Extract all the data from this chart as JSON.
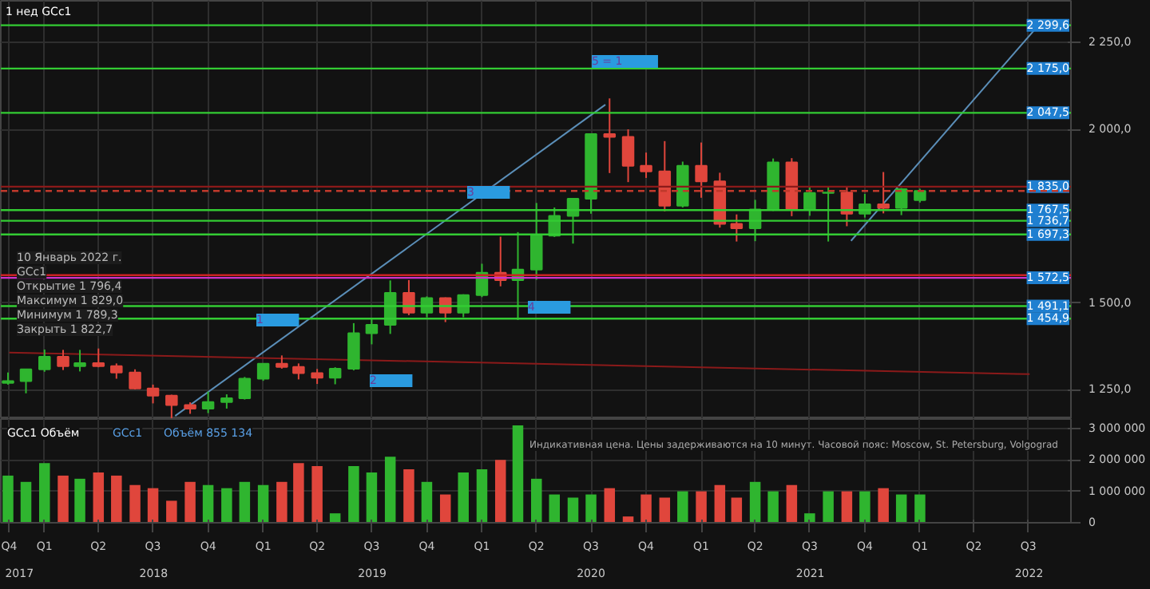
{
  "chart_data": [
    {
      "type": "candlestick",
      "annotations": [
        "1 нед GCc1",
        "10 Январь 2022 г.",
        "GCc1",
        "Открытие 1 796,4",
        "Максимум 1 829,0",
        "Минимум 1 789,3",
        "Закрыть 1 822,7",
        "1",
        "2",
        "3",
        "4",
        "5 = 1"
      ],
      "x": [
        "2017-11",
        "2017-12",
        "2018-01",
        "2018-02",
        "2018-03",
        "2018-04",
        "2018-05",
        "2018-06",
        "2018-07",
        "2018-08",
        "2018-09",
        "2018-10",
        "2018-11",
        "2018-12",
        "2019-01",
        "2019-02",
        "2019-03",
        "2019-04",
        "2019-05",
        "2019-06",
        "2019-07",
        "2019-08",
        "2019-09",
        "2019-10",
        "2019-11",
        "2019-12",
        "2020-01",
        "2020-02",
        "2020-03",
        "2020-04",
        "2020-05",
        "2020-06",
        "2020-07",
        "2020-08",
        "2020-09",
        "2020-10",
        "2020-11",
        "2020-12",
        "2021-01",
        "2021-02",
        "2021-03",
        "2021-04",
        "2021-05",
        "2021-06",
        "2021-07",
        "2021-08",
        "2021-09",
        "2021-10",
        "2021-11",
        "2021-12",
        "2022-01"
      ],
      "ohlc": [
        [
          1270,
          1300,
          1265,
          1275
        ],
        [
          1275,
          1310,
          1240,
          1309
        ],
        [
          1309,
          1366,
          1302,
          1345
        ],
        [
          1345,
          1365,
          1307,
          1318
        ],
        [
          1318,
          1365,
          1303,
          1327
        ],
        [
          1327,
          1369,
          1315,
          1318
        ],
        [
          1318,
          1326,
          1282,
          1300
        ],
        [
          1300,
          1309,
          1251,
          1254
        ],
        [
          1254,
          1265,
          1211,
          1233
        ],
        [
          1233,
          1236,
          1167,
          1206
        ],
        [
          1206,
          1214,
          1181,
          1196
        ],
        [
          1196,
          1245,
          1183,
          1215
        ],
        [
          1215,
          1237,
          1196,
          1226
        ],
        [
          1226,
          1287,
          1222,
          1282
        ],
        [
          1282,
          1326,
          1276,
          1325
        ],
        [
          1325,
          1349,
          1311,
          1316
        ],
        [
          1316,
          1326,
          1280,
          1298
        ],
        [
          1298,
          1310,
          1267,
          1285
        ],
        [
          1285,
          1315,
          1266,
          1311
        ],
        [
          1311,
          1442,
          1306,
          1413
        ],
        [
          1413,
          1453,
          1381,
          1437
        ],
        [
          1437,
          1565,
          1411,
          1529
        ],
        [
          1529,
          1566,
          1465,
          1472
        ],
        [
          1472,
          1519,
          1459,
          1514
        ],
        [
          1514,
          1516,
          1445,
          1472
        ],
        [
          1472,
          1525,
          1459,
          1523
        ],
        [
          1523,
          1613,
          1517,
          1587
        ],
        [
          1587,
          1691,
          1548,
          1566
        ],
        [
          1566,
          1704,
          1451,
          1596
        ],
        [
          1596,
          1788,
          1567,
          1694
        ],
        [
          1694,
          1775,
          1690,
          1751
        ],
        [
          1751,
          1800,
          1671,
          1800
        ],
        [
          1800,
          1986,
          1757,
          1986
        ],
        [
          1986,
          2089,
          1874,
          1978
        ],
        [
          1978,
          2000,
          1848,
          1895
        ],
        [
          1895,
          1933,
          1860,
          1879
        ],
        [
          1879,
          1966,
          1764,
          1780
        ],
        [
          1780,
          1907,
          1775,
          1895
        ],
        [
          1895,
          1962,
          1803,
          1850
        ],
        [
          1850,
          1875,
          1717,
          1728
        ],
        [
          1728,
          1755,
          1677,
          1715
        ],
        [
          1715,
          1797,
          1678,
          1769
        ],
        [
          1769,
          1916,
          1765,
          1905
        ],
        [
          1905,
          1917,
          1750,
          1771
        ],
        [
          1771,
          1834,
          1751,
          1817
        ],
        [
          1817,
          1834,
          1677,
          1818
        ],
        [
          1818,
          1834,
          1721,
          1757
        ],
        [
          1757,
          1814,
          1746,
          1784
        ],
        [
          1784,
          1877,
          1758,
          1774
        ],
        [
          1774,
          1831,
          1753,
          1828
        ],
        [
          1796.4,
          1829.0,
          1789.3,
          1822.7
        ]
      ],
      "series": [
        {
          "type": "line",
          "color": "#5b8fb9",
          "x": [
            "2018-08-07",
            "2020-07-25"
          ],
          "values": [
            1175,
            2071
          ]
        },
        {
          "type": "line",
          "color": "#5b8fb9",
          "x": [
            "2021-09-08",
            "2022-07-13"
          ],
          "values": [
            1679,
            2290
          ]
        },
        {
          "type": "line",
          "color": "#8b1a1a",
          "x": [
            "2017-11-03",
            "2022-07-03"
          ],
          "values": [
            1357,
            1295
          ]
        }
      ],
      "xlim": [
        "2017-10-20",
        "2022-09-10"
      ],
      "ylim": [
        1166,
        2370
      ],
      "yticks": [
        {
          "value": 1250,
          "label": "1 250,0"
        },
        {
          "value": 1500,
          "label": "1 500,0"
        },
        {
          "value": 2000,
          "label": "2 000,0"
        },
        {
          "value": 2250,
          "label": "2 250,0"
        }
      ],
      "xticks": [
        {
          "value": "2017-11-03",
          "label": null
        },
        {
          "value": "2018-01-01",
          "label": null
        },
        {
          "value": "2018-04-01",
          "label": null
        },
        {
          "value": "2018-07-01",
          "label": null
        },
        {
          "value": "2018-10-01",
          "label": null
        },
        {
          "value": "2019-01-01",
          "label": null
        },
        {
          "value": "2019-04-01",
          "label": null
        },
        {
          "value": "2019-07-01",
          "label": null
        },
        {
          "value": "2019-10-01",
          "label": null
        },
        {
          "value": "2020-01-01",
          "label": null
        },
        {
          "value": "2020-04-01",
          "label": null
        },
        {
          "value": "2020-07-01",
          "label": null
        },
        {
          "value": "2020-10-01",
          "label": null
        },
        {
          "value": "2021-01-01",
          "label": null
        },
        {
          "value": "2021-04-01",
          "label": null
        },
        {
          "value": "2021-07-01",
          "label": null
        },
        {
          "value": "2021-10-01",
          "label": null
        },
        {
          "value": "2022-01-01",
          "label": null
        },
        {
          "value": "2022-04-01",
          "label": null
        },
        {
          "value": "2022-07-01",
          "label": null
        }
      ],
      "tick_labels": "y",
      "grid": true,
      "ref_lines": [
        {
          "axis": "y",
          "value": 2299.6,
          "label": "2 299,6",
          "color": "#33cc33"
        },
        {
          "axis": "y",
          "value": 2175.0,
          "label": "2 175,0",
          "color": "#33cc33"
        },
        {
          "axis": "y",
          "value": 2047.5,
          "label": "2 047,5",
          "color": "#33cc33"
        },
        {
          "axis": "y",
          "value": 1835.0,
          "label": "1 835,0",
          "color": "#8b1a1a"
        },
        {
          "axis": "y",
          "value": 1822.7,
          "label": null,
          "color": "#c0392b",
          "line_style": "dashed"
        },
        {
          "axis": "y",
          "value": 1767.5,
          "label": "1 767,5",
          "color": "#33cc33"
        },
        {
          "axis": "y",
          "value": 1736.7,
          "label": "1 736,7",
          "color": "#33cc33"
        },
        {
          "axis": "y",
          "value": 1697.3,
          "label": "1 697,3",
          "color": "#33cc33"
        },
        {
          "axis": "y",
          "value": 1580.0,
          "label": null,
          "color": "#cc2222"
        },
        {
          "axis": "y",
          "value": 1572.5,
          "label": "1 572,5",
          "color": "#cc33cc"
        },
        {
          "axis": "y",
          "value": 1491.1,
          "label": "1 491,1",
          "color": "#33cc33"
        },
        {
          "axis": "y",
          "value": 1454.9,
          "label": "1 454,9",
          "color": "#33cc33"
        }
      ]
    },
    {
      "type": "bar",
      "annotations": [
        "GCc1 Объём",
        "GCc1",
        "Объём 855 134",
        "Индикативная цена. Цены задерживаются на 10 минут. Часовой пояс: Moscow, St. Petersburg, Volgograd"
      ],
      "x": [
        "2017-11",
        "2017-12",
        "2018-01",
        "2018-02",
        "2018-03",
        "2018-04",
        "2018-05",
        "2018-06",
        "2018-07",
        "2018-08",
        "2018-09",
        "2018-10",
        "2018-11",
        "2018-12",
        "2019-01",
        "2019-02",
        "2019-03",
        "2019-04",
        "2019-05",
        "2019-06",
        "2019-07",
        "2019-08",
        "2019-09",
        "2019-10",
        "2019-11",
        "2019-12",
        "2020-01",
        "2020-02",
        "2020-03",
        "2020-04",
        "2020-05",
        "2020-06",
        "2020-07",
        "2020-08",
        "2020-09",
        "2020-10",
        "2020-11",
        "2020-12",
        "2021-01",
        "2021-02",
        "2021-03",
        "2021-04",
        "2021-05",
        "2021-06",
        "2021-07",
        "2021-08",
        "2021-09",
        "2021-10",
        "2021-11",
        "2021-12",
        "2022-01"
      ],
      "values": [
        1500000,
        1300000,
        1900000,
        1500000,
        1400000,
        1600000,
        1500000,
        1200000,
        1100000,
        700000,
        1300000,
        1200000,
        1100000,
        1300000,
        1200000,
        1300000,
        1900000,
        1800000,
        300000,
        1800000,
        1600000,
        2100000,
        1700000,
        1300000,
        900000,
        1600000,
        1700000,
        2000000,
        3100000,
        1400000,
        900000,
        800000,
        900000,
        1100000,
        200000,
        900000,
        800000,
        1000000,
        1000000,
        1200000,
        800000,
        1300000,
        1000000,
        1200000,
        300000,
        1000000,
        1000000,
        1000000,
        1100000,
        900000,
        900000
      ],
      "colors": [
        "#2fb52f",
        "#2fb52f",
        "#2fb52f",
        "#e0463c",
        "#2fb52f",
        "#e0463c",
        "#e0463c",
        "#e0463c",
        "#e0463c",
        "#e0463c",
        "#e0463c",
        "#2fb52f",
        "#2fb52f",
        "#2fb52f",
        "#2fb52f",
        "#e0463c",
        "#e0463c",
        "#e0463c",
        "#2fb52f",
        "#2fb52f",
        "#2fb52f",
        "#2fb52f",
        "#e0463c",
        "#2fb52f",
        "#e0463c",
        "#2fb52f",
        "#2fb52f",
        "#e0463c",
        "#2fb52f",
        "#2fb52f",
        "#2fb52f",
        "#2fb52f",
        "#2fb52f",
        "#e0463c",
        "#e0463c",
        "#e0463c",
        "#e0463c",
        "#2fb52f",
        "#e0463c",
        "#e0463c",
        "#e0463c",
        "#2fb52f",
        "#2fb52f",
        "#e0463c",
        "#2fb52f",
        "#2fb52f",
        "#e0463c",
        "#2fb52f",
        "#e0463c",
        "#2fb52f",
        "#2fb52f"
      ],
      "xlim": [
        "2017-10-20",
        "2022-09-10"
      ],
      "x2lim": [
        "2017-10-20",
        "2022-09-10"
      ],
      "ylim": [
        0,
        3300000
      ],
      "yticks": [
        {
          "value": 0,
          "label": "0"
        },
        {
          "value": 1000000,
          "label": "1 000 000"
        },
        {
          "value": 2000000,
          "label": "2 000 000"
        },
        {
          "value": 3000000,
          "label": "3 000 000"
        }
      ],
      "xticks": [
        {
          "value": "2017-11-03",
          "label": "Q4"
        },
        {
          "value": "2018-01-01",
          "label": "Q1"
        },
        {
          "value": "2018-04-01",
          "label": "Q2"
        },
        {
          "value": "2018-07-01",
          "label": "Q3"
        },
        {
          "value": "2018-10-01",
          "label": "Q4"
        },
        {
          "value": "2019-01-01",
          "label": "Q1"
        },
        {
          "value": "2019-04-01",
          "label": "Q2"
        },
        {
          "value": "2019-07-01",
          "label": "Q3"
        },
        {
          "value": "2019-10-01",
          "label": "Q4"
        },
        {
          "value": "2020-01-01",
          "label": "Q1"
        },
        {
          "value": "2020-04-01",
          "label": "Q2"
        },
        {
          "value": "2020-07-01",
          "label": "Q3"
        },
        {
          "value": "2020-10-01",
          "label": "Q4"
        },
        {
          "value": "2021-01-01",
          "label": "Q1"
        },
        {
          "value": "2021-04-01",
          "label": "Q2"
        },
        {
          "value": "2021-07-01",
          "label": "Q3"
        },
        {
          "value": "2021-10-01",
          "label": "Q4"
        },
        {
          "value": "2022-01-01",
          "label": "Q1"
        },
        {
          "value": "2022-04-01",
          "label": "Q2"
        },
        {
          "value": "2022-07-01",
          "label": "Q3"
        }
      ],
      "x2ticks": [
        {
          "value": "2017-11-20",
          "label": "2017"
        },
        {
          "value": "2018-07-02",
          "label": "2018"
        },
        {
          "value": "2019-07-02",
          "label": "2019"
        },
        {
          "value": "2020-07-01",
          "label": "2020"
        },
        {
          "value": "2021-07-02",
          "label": "2021"
        },
        {
          "value": "2022-07-02",
          "label": "2022"
        }
      ],
      "grid": true
    }
  ]
}
